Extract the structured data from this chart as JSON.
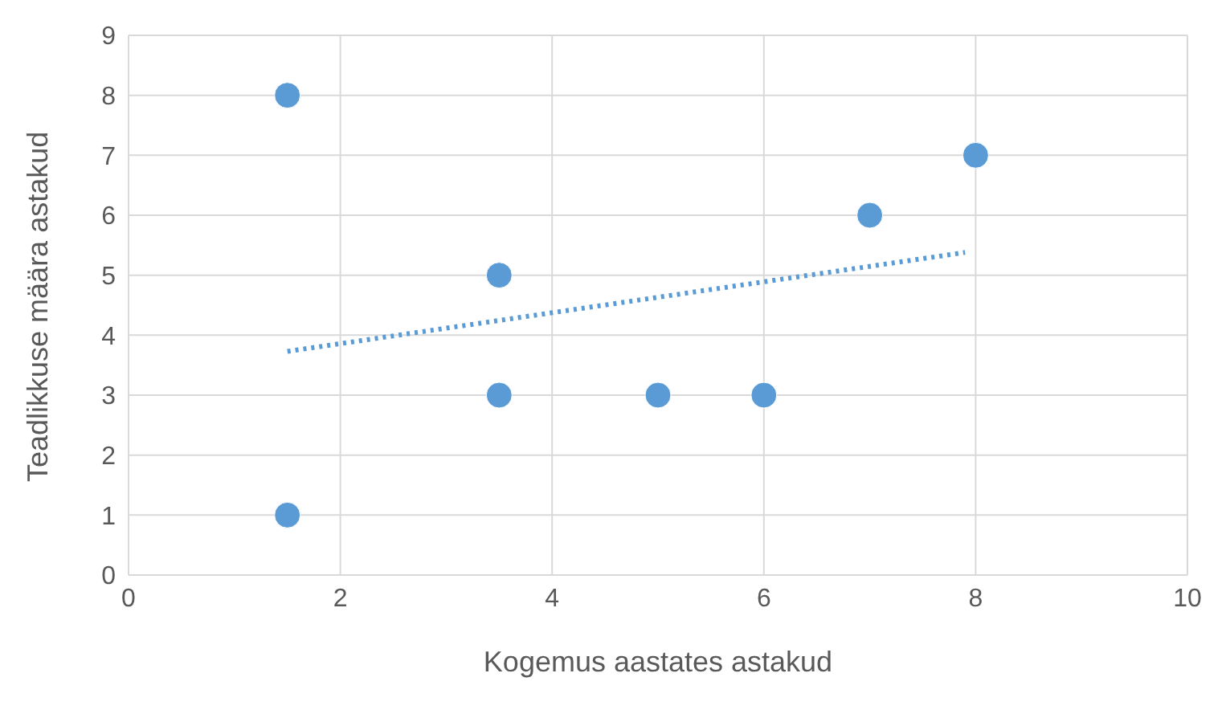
{
  "chart_data": {
    "type": "scatter",
    "xlabel": "Kogemus aastates astakud",
    "ylabel": "Teadlikkuse määra astakud",
    "xlim": [
      0,
      10
    ],
    "xticks": [
      0,
      2,
      4,
      6,
      8,
      10
    ],
    "ylim": [
      0,
      9
    ],
    "yticks": [
      0,
      1,
      2,
      3,
      4,
      5,
      6,
      7,
      8,
      9
    ],
    "grid": true,
    "legend": false,
    "marker": "circle",
    "series": [
      {
        "type": "scatter",
        "color": "#5b9bd5",
        "x": [
          1.5,
          1.5,
          3.5,
          3.5,
          5,
          6,
          7,
          8
        ],
        "values": [
          8,
          1,
          5,
          3,
          3,
          3,
          6,
          7
        ]
      },
      {
        "type": "line",
        "color": "#5b9bd5",
        "line_style": "dotted",
        "marker": "none",
        "x": [
          1.5,
          7.9
        ],
        "values": [
          3.73,
          5.38
        ]
      }
    ]
  }
}
